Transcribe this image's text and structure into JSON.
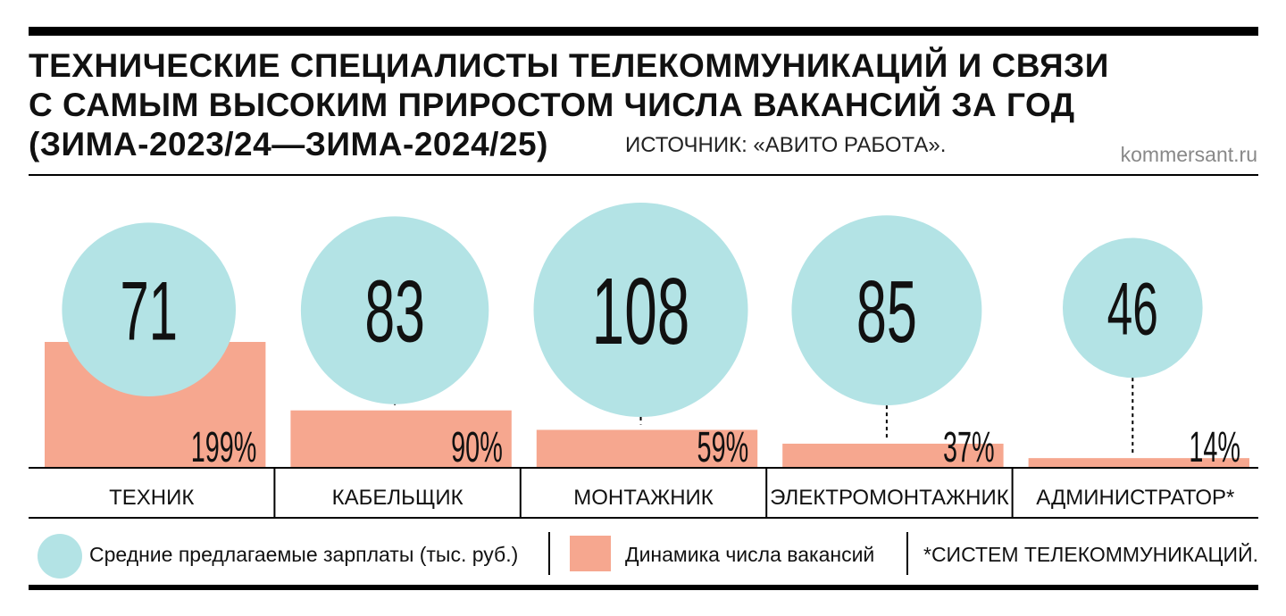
{
  "title": {
    "line1": "ТЕХНИЧЕСКИЕ СПЕЦИАЛИСТЫ ТЕЛЕКОММУНИКАЦИЙ И СВЯЗИ",
    "line2": "С САМЫМ ВЫСОКИМ ПРИРОСТОМ ЧИСЛА ВАКАНСИЙ ЗА ГОД",
    "line3": "(ЗИМА-2023/24—ЗИМА-2024/25)"
  },
  "source": "ИСТОЧНИК: «АВИТО РАБОТА».",
  "site": "kommersant.ru",
  "legend": {
    "salary": "Средние предлагаемые зарплаты (тыс. руб.)",
    "dynamics": "Динамика числа вакансий",
    "note": "*СИСТЕМ ТЕЛЕКОММУНИКАЦИЙ."
  },
  "colors": {
    "circle": "#b3e3e5",
    "bar": "#f6a78f"
  },
  "chart_data": {
    "type": "bar",
    "categories": [
      "ТЕХНИК",
      "КАБЕЛЬЩИК",
      "МОНТАЖНИК",
      "ЭЛЕКТРОМОНТАЖНИК",
      "АДМИНИСТРАТОР*"
    ],
    "series": [
      {
        "name": "Средние предлагаемые зарплаты (тыс. руб.)",
        "values": [
          71,
          83,
          108,
          85,
          46
        ],
        "labels": [
          "71",
          "83",
          "108",
          "85",
          "46"
        ]
      },
      {
        "name": "Динамика числа вакансий",
        "values": [
          199,
          90,
          59,
          37,
          14
        ],
        "labels": [
          "199%",
          "90%",
          "59%",
          "37%",
          "14%"
        ]
      }
    ]
  }
}
